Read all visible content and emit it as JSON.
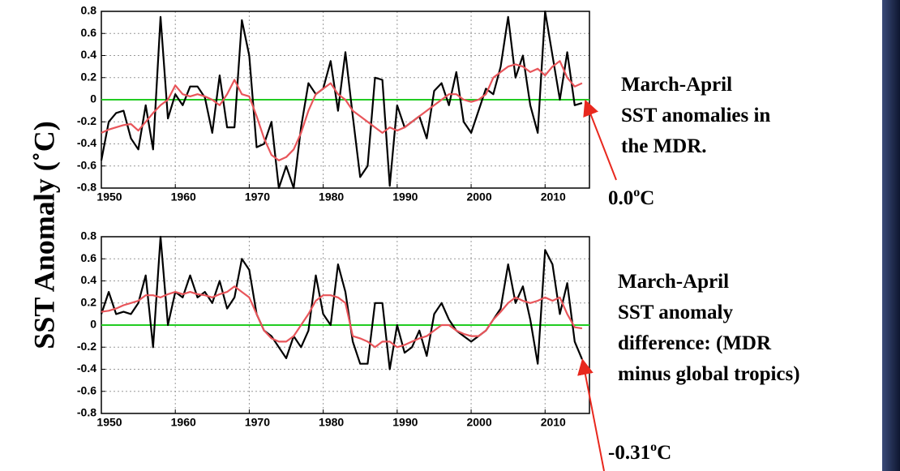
{
  "ylabel": "SST Anomaly (˚C)",
  "chart_data": [
    {
      "type": "line",
      "x": [
        1950,
        1951,
        1952,
        1953,
        1954,
        1955,
        1956,
        1957,
        1958,
        1959,
        1960,
        1961,
        1962,
        1963,
        1964,
        1965,
        1966,
        1967,
        1968,
        1969,
        1970,
        1971,
        1972,
        1973,
        1974,
        1975,
        1976,
        1977,
        1978,
        1979,
        1980,
        1981,
        1982,
        1983,
        1984,
        1985,
        1986,
        1987,
        1988,
        1989,
        1990,
        1991,
        1992,
        1993,
        1994,
        1995,
        1996,
        1997,
        1998,
        1999,
        2000,
        2001,
        2002,
        2003,
        2004,
        2005,
        2006,
        2007,
        2008,
        2009,
        2010,
        2011,
        2012,
        2013,
        2014,
        2015
      ],
      "series": [
        {
          "color": "#000000",
          "values": [
            -0.55,
            -0.2,
            -0.12,
            -0.1,
            -0.35,
            -0.45,
            -0.05,
            -0.45,
            0.75,
            -0.17,
            0.05,
            -0.05,
            0.12,
            0.12,
            0.02,
            -0.3,
            0.22,
            -0.25,
            -0.25,
            0.72,
            0.4,
            -0.43,
            -0.4,
            -0.2,
            -0.8,
            -0.6,
            -0.8,
            -0.25,
            0.15,
            0.05,
            0.1,
            0.35,
            -0.1,
            0.43,
            -0.15,
            -0.7,
            -0.6,
            0.2,
            0.18,
            -0.78,
            -0.05,
            -0.25,
            -0.2,
            -0.15,
            -0.35,
            0.08,
            0.15,
            -0.05,
            0.25,
            -0.2,
            -0.3,
            -0.1,
            0.1,
            0.05,
            0.3,
            0.75,
            0.2,
            0.4,
            -0.05,
            -0.3,
            0.8,
            0.4,
            0.0,
            0.43,
            -0.05,
            -0.03
          ]
        },
        {
          "color": "#e8555a",
          "values": [
            -0.3,
            -0.27,
            -0.25,
            -0.23,
            -0.22,
            -0.28,
            -0.2,
            -0.12,
            -0.05,
            0.0,
            0.13,
            0.05,
            0.03,
            0.05,
            0.03,
            0.0,
            -0.05,
            0.05,
            0.18,
            0.05,
            0.03,
            -0.15,
            -0.35,
            -0.5,
            -0.55,
            -0.52,
            -0.45,
            -0.3,
            -0.1,
            0.05,
            0.1,
            0.15,
            0.05,
            0.0,
            -0.1,
            -0.15,
            -0.2,
            -0.25,
            -0.3,
            -0.25,
            -0.28,
            -0.25,
            -0.2,
            -0.15,
            -0.1,
            -0.05,
            0.0,
            0.05,
            0.05,
            0.0,
            -0.02,
            0.0,
            0.05,
            0.2,
            0.25,
            0.3,
            0.32,
            0.3,
            0.25,
            0.28,
            0.22,
            0.3,
            0.35,
            0.2,
            0.12,
            0.15
          ]
        }
      ],
      "xlim": [
        1950,
        2016
      ],
      "xticks": [
        1950,
        1960,
        1970,
        1980,
        1990,
        2000,
        2010
      ],
      "ylim": [
        -0.8,
        0.8
      ],
      "yticks": [
        -0.8,
        -0.6,
        -0.4,
        -0.2,
        0,
        0.2,
        0.4,
        0.6,
        0.8
      ],
      "grid": true,
      "hline": 0,
      "hline_color": "#22cc22",
      "annotation": {
        "lines": [
          "March-April",
          "SST anomalies in",
          "the MDR."
        ],
        "label": {
          "value": "0.0",
          "sup": "o",
          "unit": "C"
        }
      }
    },
    {
      "type": "line",
      "x": [
        1950,
        1951,
        1952,
        1953,
        1954,
        1955,
        1956,
        1957,
        1958,
        1959,
        1960,
        1961,
        1962,
        1963,
        1964,
        1965,
        1966,
        1967,
        1968,
        1969,
        1970,
        1971,
        1972,
        1973,
        1974,
        1975,
        1976,
        1977,
        1978,
        1979,
        1980,
        1981,
        1982,
        1983,
        1984,
        1985,
        1986,
        1987,
        1988,
        1989,
        1990,
        1991,
        1992,
        1993,
        1994,
        1995,
        1996,
        1997,
        1998,
        1999,
        2000,
        2001,
        2002,
        2003,
        2004,
        2005,
        2006,
        2007,
        2008,
        2009,
        2010,
        2011,
        2012,
        2013,
        2014,
        2015
      ],
      "series": [
        {
          "color": "#000000",
          "values": [
            0.1,
            0.3,
            0.1,
            0.12,
            0.1,
            0.2,
            0.45,
            -0.2,
            0.8,
            0.0,
            0.3,
            0.25,
            0.45,
            0.25,
            0.3,
            0.2,
            0.4,
            0.15,
            0.25,
            0.6,
            0.5,
            0.1,
            -0.05,
            -0.1,
            -0.2,
            -0.3,
            -0.1,
            -0.2,
            -0.05,
            0.45,
            0.1,
            0.0,
            0.55,
            0.3,
            -0.15,
            -0.35,
            -0.35,
            0.2,
            0.2,
            -0.4,
            0.0,
            -0.25,
            -0.2,
            -0.05,
            -0.28,
            0.1,
            0.2,
            0.05,
            -0.05,
            -0.1,
            -0.15,
            -0.1,
            -0.05,
            0.05,
            0.15,
            0.55,
            0.2,
            0.35,
            0.05,
            -0.35,
            0.68,
            0.55,
            0.1,
            0.38,
            -0.15,
            -0.31
          ]
        },
        {
          "color": "#e8555a",
          "values": [
            0.12,
            0.13,
            0.15,
            0.18,
            0.2,
            0.22,
            0.27,
            0.27,
            0.25,
            0.28,
            0.3,
            0.28,
            0.3,
            0.28,
            0.27,
            0.25,
            0.28,
            0.3,
            0.35,
            0.3,
            0.25,
            0.1,
            -0.05,
            -0.12,
            -0.15,
            -0.15,
            -0.1,
            0.0,
            0.1,
            0.22,
            0.27,
            0.27,
            0.25,
            0.2,
            -0.1,
            -0.12,
            -0.15,
            -0.2,
            -0.15,
            -0.15,
            -0.2,
            -0.18,
            -0.15,
            -0.12,
            -0.1,
            -0.05,
            0.0,
            0.0,
            -0.05,
            -0.08,
            -0.1,
            -0.1,
            -0.05,
            0.05,
            0.12,
            0.2,
            0.25,
            0.22,
            0.2,
            0.22,
            0.25,
            0.22,
            0.25,
            0.1,
            -0.02,
            -0.03
          ]
        }
      ],
      "xlim": [
        1950,
        2016
      ],
      "xticks": [
        1950,
        1960,
        1970,
        1980,
        1990,
        2000,
        2010
      ],
      "ylim": [
        -0.8,
        0.8
      ],
      "yticks": [
        -0.8,
        -0.6,
        -0.4,
        -0.2,
        0,
        0.2,
        0.4,
        0.6,
        0.8
      ],
      "grid": true,
      "hline": 0,
      "hline_color": "#22cc22",
      "annotation": {
        "lines": [
          "March-April",
          "SST anomaly",
          "difference: (MDR",
          "minus global tropics)"
        ],
        "label": {
          "value": "-0.31",
          "sup": "o",
          "unit": "C"
        }
      }
    }
  ]
}
